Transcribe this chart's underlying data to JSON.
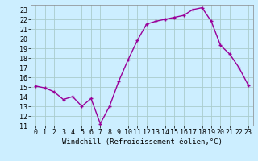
{
  "hours": [
    0,
    1,
    2,
    3,
    4,
    5,
    6,
    7,
    8,
    9,
    10,
    11,
    12,
    13,
    14,
    15,
    16,
    17,
    18,
    19,
    20,
    21,
    22,
    23
  ],
  "values": [
    15.1,
    14.9,
    14.5,
    13.7,
    14.0,
    13.0,
    13.8,
    11.2,
    13.0,
    15.6,
    17.8,
    19.8,
    21.5,
    21.8,
    22.0,
    22.2,
    22.4,
    23.0,
    23.2,
    21.8,
    19.3,
    18.4,
    17.0,
    15.2
  ],
  "line_color": "#990099",
  "marker": "+",
  "bg_color": "#cceeff",
  "xlabel": "Windchill (Refroidissement éolien,°C)",
  "ylim": [
    11,
    23.5
  ],
  "xlim": [
    -0.5,
    23.5
  ],
  "yticks": [
    11,
    12,
    13,
    14,
    15,
    16,
    17,
    18,
    19,
    20,
    21,
    22,
    23
  ],
  "xticks": [
    0,
    1,
    2,
    3,
    4,
    5,
    6,
    7,
    8,
    9,
    10,
    11,
    12,
    13,
    14,
    15,
    16,
    17,
    18,
    19,
    20,
    21,
    22,
    23
  ],
  "grid_color": "#aacccc",
  "xlabel_fontsize": 6.5,
  "tick_fontsize": 6,
  "marker_size": 3,
  "line_width": 1.0
}
